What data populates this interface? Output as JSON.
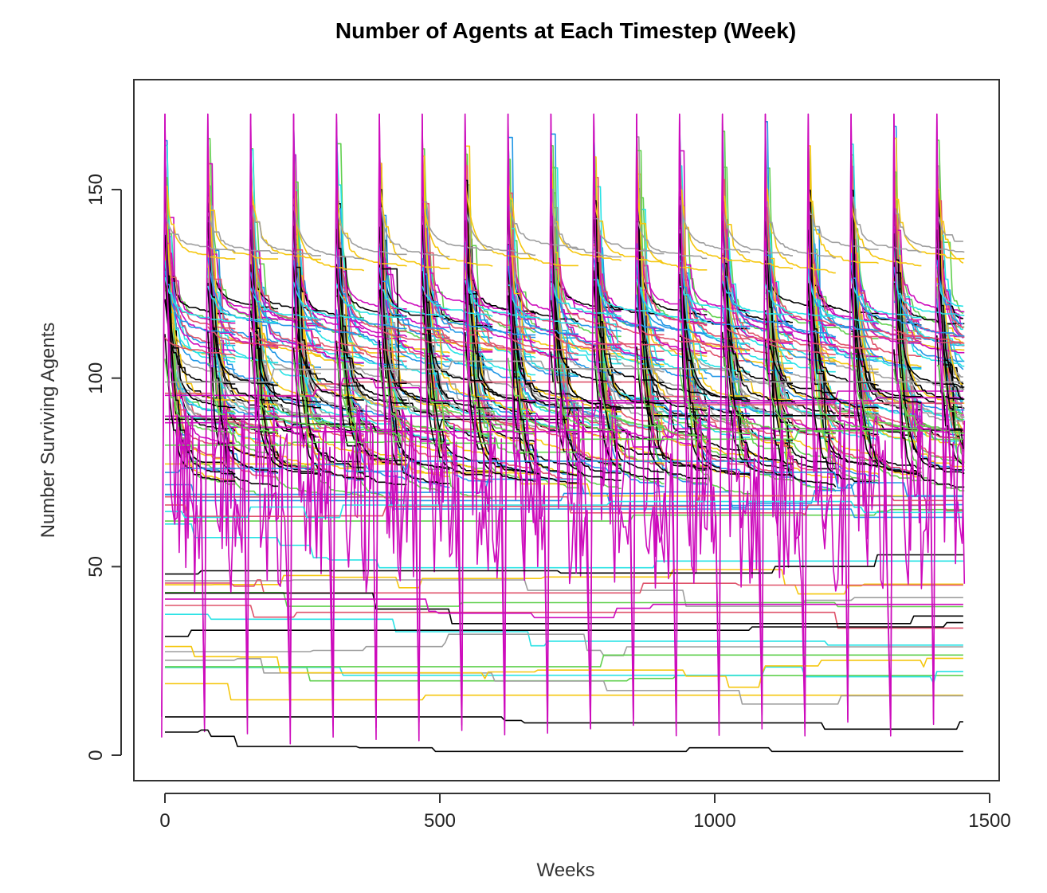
{
  "chart_data": {
    "type": "line",
    "title": "Number of Agents at Each Timestep (Week)",
    "xlabel": "Weeks",
    "ylabel": "Number Surviving Agents",
    "xlim": [
      0,
      1500
    ],
    "ylim": [
      0,
      170
    ],
    "xticks": [
      0,
      500,
      1000,
      1500
    ],
    "yticks": [
      0,
      50,
      100,
      150
    ],
    "x_max_data": 1455,
    "grid": false,
    "legend": "none",
    "palette": [
      "#000000",
      "#df536b",
      "#61d04f",
      "#2297e6",
      "#28e2e5",
      "#cd0bbc",
      "#f5c710",
      "#9e9e9e"
    ],
    "cycle_period_weeks": 78,
    "peak_weeks": [
      0,
      78,
      156,
      234,
      312,
      390,
      468,
      546,
      624,
      702,
      780,
      858,
      936,
      1014,
      1092,
      1170,
      1248,
      1326,
      1404
    ],
    "peak_value": 170,
    "series_groups": [
      {
        "color_index": 5,
        "pattern": "cycle_peak",
        "peak": 170,
        "trough": 5
      },
      {
        "color_index": 0,
        "pattern": "declining",
        "start": 150,
        "settle": 78
      },
      {
        "color_index": 0,
        "pattern": "declining",
        "start": 140,
        "settle": 95
      },
      {
        "color_index": 0,
        "pattern": "declining",
        "start": 110,
        "settle": 75
      },
      {
        "color_index": 1,
        "pattern": "declining",
        "start": 112,
        "settle": 110
      },
      {
        "color_index": 2,
        "pattern": "declining",
        "start": 105,
        "settle": 88
      },
      {
        "color_index": 3,
        "pattern": "declining",
        "start": 130,
        "settle": 115
      },
      {
        "color_index": 4,
        "pattern": "declining",
        "start": 125,
        "settle": 118
      },
      {
        "color_index": 6,
        "pattern": "declining",
        "start": 150,
        "settle": 132
      },
      {
        "color_index": 7,
        "pattern": "declining",
        "start": 145,
        "settle": 135
      },
      {
        "color_index": 7,
        "pattern": "flat",
        "level": 100
      },
      {
        "color_index": 2,
        "pattern": "flat",
        "level": 80
      },
      {
        "color_index": 3,
        "pattern": "flat",
        "level": 72
      },
      {
        "color_index": 1,
        "pattern": "flat",
        "level": 68
      },
      {
        "color_index": 4,
        "pattern": "flat",
        "level": 62
      },
      {
        "color_index": 0,
        "pattern": "flat",
        "level": 50
      },
      {
        "color_index": 5,
        "pattern": "flat",
        "level": 42
      },
      {
        "color_index": 6,
        "pattern": "flat",
        "level": 28
      },
      {
        "color_index": 2,
        "pattern": "flat",
        "level": 22
      },
      {
        "color_index": 0,
        "pattern": "flat",
        "level": 8
      }
    ]
  }
}
